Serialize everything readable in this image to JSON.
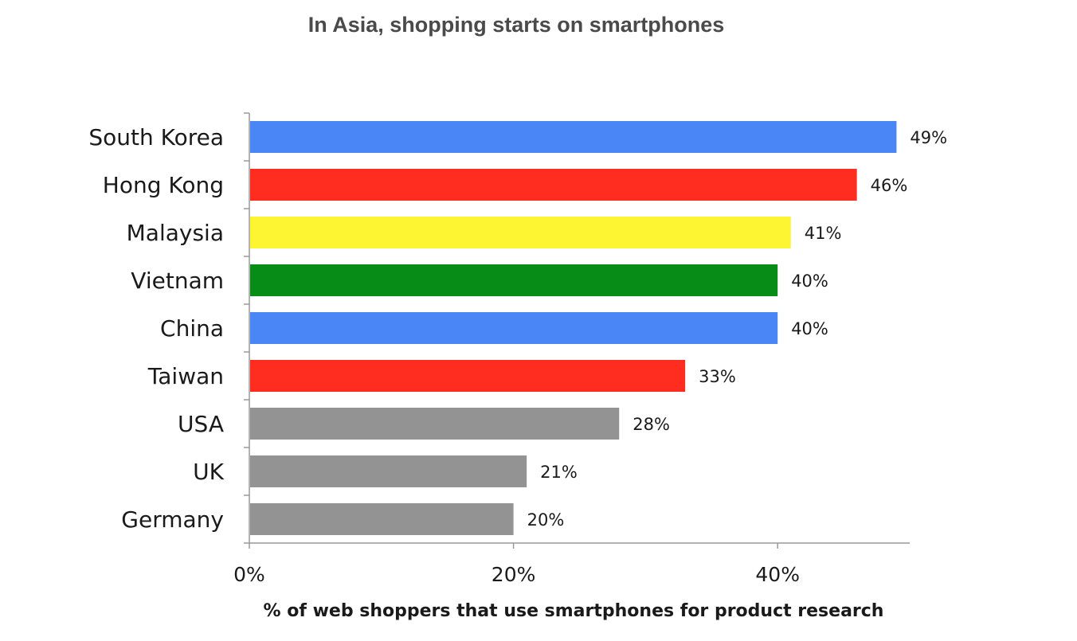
{
  "chart_data": {
    "type": "bar",
    "orientation": "horizontal",
    "title": "In Asia, shopping starts on smartphones",
    "xlabel": "% of web shoppers that use smartphones for product research",
    "ylabel": "",
    "categories": [
      "South Korea",
      "Hong Kong",
      "Malaysia",
      "Vietnam",
      "China",
      "Taiwan",
      "USA",
      "UK",
      "Germany"
    ],
    "values": [
      49,
      46,
      41,
      40,
      40,
      33,
      28,
      21,
      20
    ],
    "data_labels": [
      "49%",
      "46%",
      "41%",
      "40%",
      "40%",
      "33%",
      "28%",
      "21%",
      "20%"
    ],
    "colors": [
      "#4a86f5",
      "#ff2d1f",
      "#fdf531",
      "#078c17",
      "#4a86f5",
      "#ff2d1f",
      "#939393",
      "#939393",
      "#939393"
    ],
    "xlim": [
      0,
      50
    ],
    "x_ticks": [
      0,
      20,
      40
    ],
    "x_tick_labels": [
      "0%",
      "20%",
      "40%"
    ],
    "grid": false,
    "legend": "none"
  }
}
